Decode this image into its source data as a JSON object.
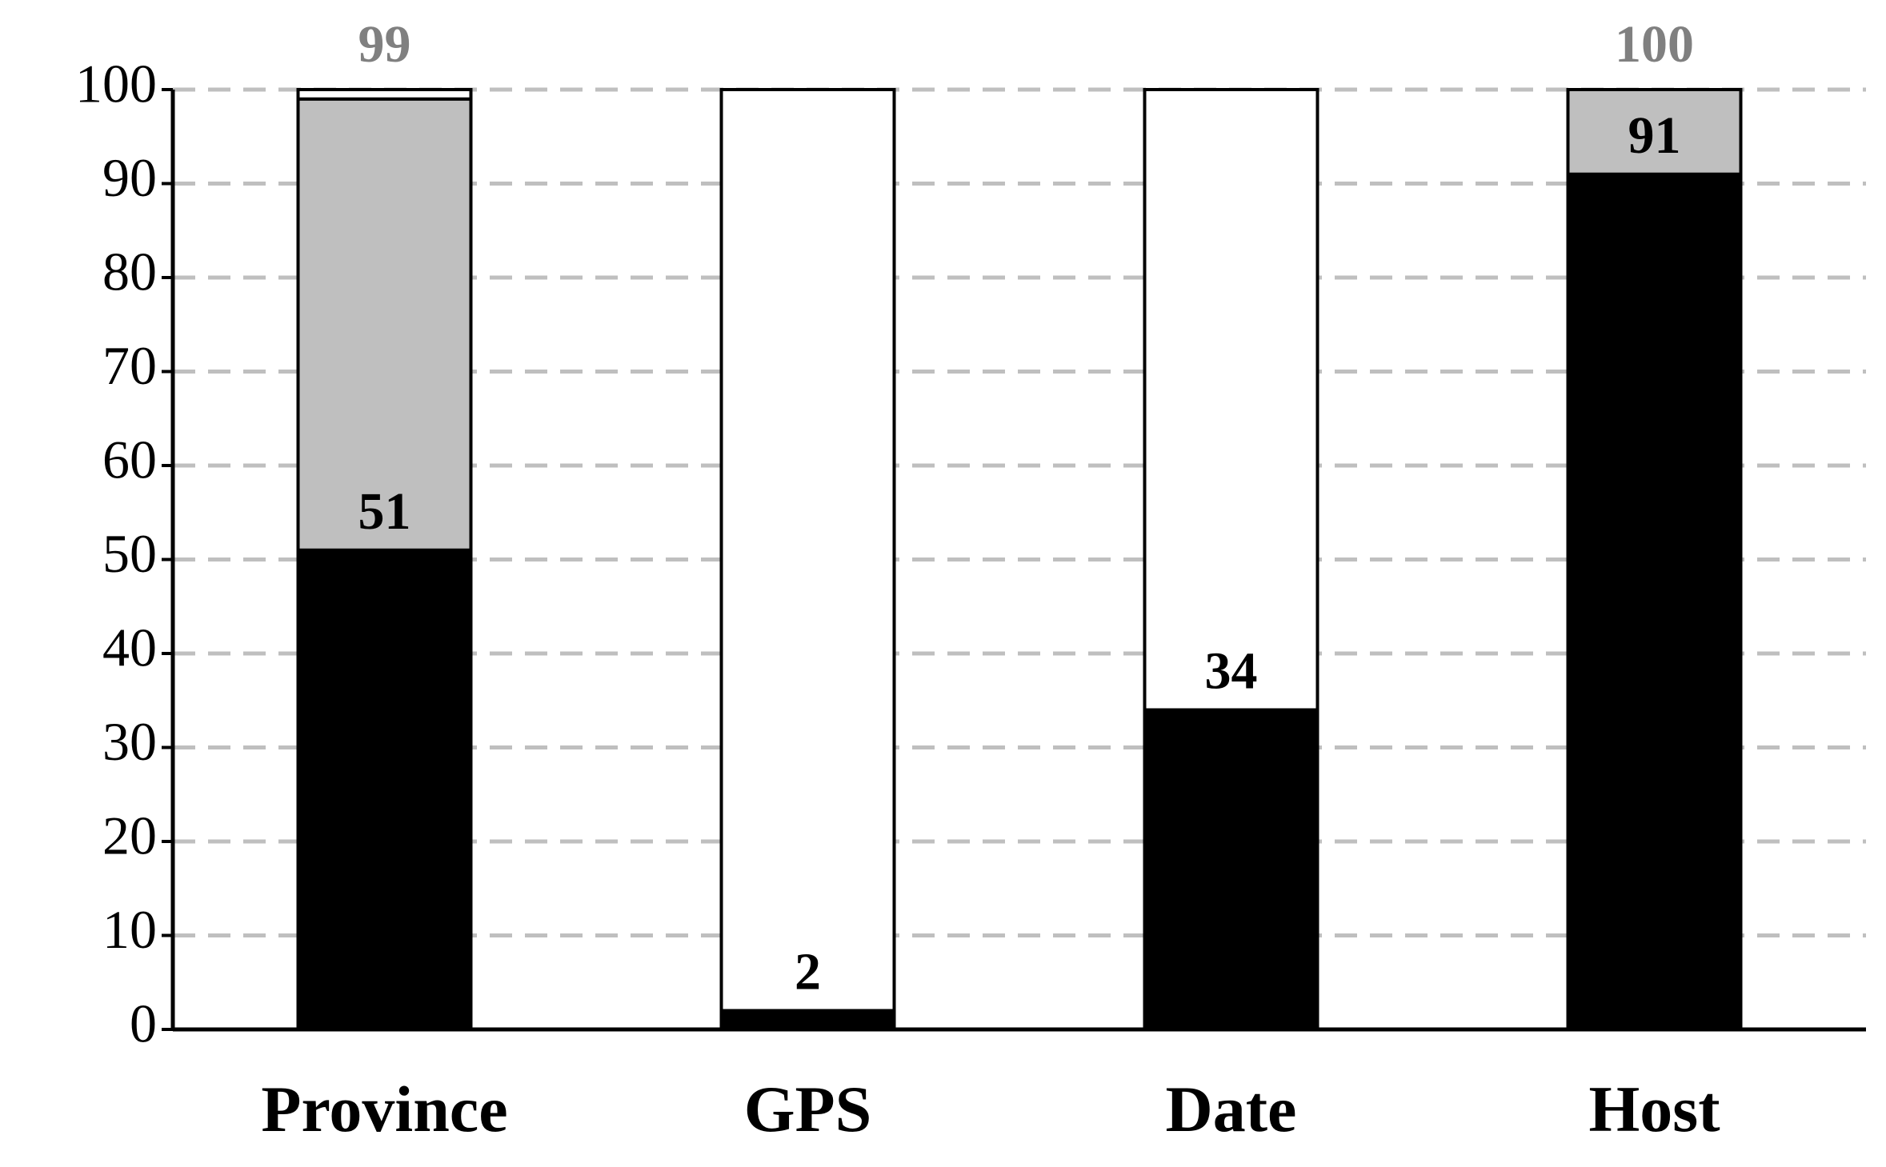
{
  "chart_data": {
    "type": "stacked_bar",
    "categories": [
      "Province",
      "GPS",
      "Date",
      "Host"
    ],
    "series": [
      {
        "color": "#000000",
        "values": [
          51,
          2,
          34,
          91
        ]
      },
      {
        "color": "#bfbfbf",
        "values": [
          48,
          0,
          0,
          9
        ]
      },
      {
        "color": "#ffffff",
        "values": [
          1,
          98,
          66,
          0
        ]
      }
    ],
    "top_labels": [
      99,
      null,
      null,
      100
    ],
    "top_label_color": "#808080",
    "ylim": [
      0,
      100
    ],
    "yticks": [
      0,
      10,
      20,
      30,
      40,
      50,
      60,
      70,
      80,
      90,
      100
    ],
    "grid": true
  }
}
